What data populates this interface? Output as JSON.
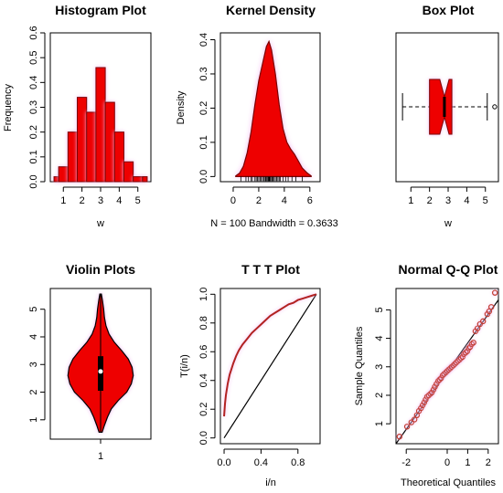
{
  "colors": {
    "fill": "#ee0000",
    "outline": "#7a0000",
    "glow": "#f2b8f2",
    "line": "#000000"
  },
  "chart_data": [
    {
      "id": "histogram",
      "type": "bar",
      "title": "Histogram Plot",
      "xlabel": "w",
      "ylabel": "Frequency",
      "xlim": [
        0.3,
        5.7
      ],
      "ylim": [
        0,
        0.6
      ],
      "xticks": [
        "1",
        "2",
        "3",
        "4",
        "5"
      ],
      "yticks": [
        "0.0",
        "0.1",
        "0.2",
        "0.3",
        "0.4",
        "0.5",
        "0.6"
      ],
      "bin_edges": [
        0.5,
        0.75,
        1.25,
        1.75,
        2.25,
        2.75,
        3.25,
        3.75,
        4.25,
        4.75,
        5.25,
        5.5
      ],
      "values": [
        0.02,
        0.06,
        0.2,
        0.34,
        0.28,
        0.46,
        0.32,
        0.2,
        0.08,
        0.02,
        0.02
      ]
    },
    {
      "id": "density",
      "type": "area",
      "title": "Kernel Density",
      "ylabel": "Density",
      "note": "N = 100   Bandwidth = 0.3633",
      "xlim": [
        -1.0,
        6.8
      ],
      "ylim": [
        -0.015,
        0.42
      ],
      "xticks": [
        "0",
        "2",
        "4",
        "6"
      ],
      "yticks": [
        "0.0",
        "0.1",
        "0.2",
        "0.3",
        "0.4"
      ],
      "x": [
        0.2,
        0.5,
        0.8,
        1.1,
        1.4,
        1.7,
        2.0,
        2.3,
        2.6,
        2.8,
        3.0,
        3.3,
        3.6,
        3.9,
        4.2,
        4.5,
        4.8,
        5.1,
        5.4,
        5.8,
        6.1
      ],
      "y": [
        0.002,
        0.01,
        0.03,
        0.07,
        0.13,
        0.21,
        0.28,
        0.33,
        0.38,
        0.395,
        0.37,
        0.3,
        0.21,
        0.14,
        0.1,
        0.08,
        0.065,
        0.045,
        0.025,
        0.01,
        0.002
      ],
      "rug": [
        0.6,
        1.0,
        1.2,
        1.4,
        1.5,
        1.7,
        1.8,
        1.9,
        2.0,
        2.1,
        2.2,
        2.3,
        2.4,
        2.5,
        2.55,
        2.6,
        2.7,
        2.75,
        2.8,
        2.85,
        2.9,
        3.0,
        3.05,
        3.1,
        3.2,
        3.3,
        3.4,
        3.5,
        3.6,
        3.7,
        3.9,
        4.1,
        4.3,
        4.6,
        4.9,
        5.4
      ]
    },
    {
      "id": "boxplot",
      "type": "box",
      "title": "Box Plot",
      "xlabel": "w",
      "xlim": [
        0.2,
        5.7
      ],
      "xticks": [
        "1",
        "2",
        "3",
        "4",
        "5"
      ],
      "whisker_low": 0.55,
      "q1": 2.0,
      "median": 2.8,
      "q3": 3.2,
      "whisker_high": 5.1,
      "notch": [
        2.55,
        3.05
      ],
      "outliers": [
        5.5
      ]
    },
    {
      "id": "violin",
      "type": "violin",
      "title": "Violin Plots",
      "xtick": "1",
      "ylim": [
        0.3,
        5.75
      ],
      "yticks": [
        "1",
        "2",
        "3",
        "4",
        "5"
      ],
      "y": [
        0.55,
        0.8,
        1.1,
        1.4,
        1.7,
        2.0,
        2.3,
        2.6,
        2.9,
        3.2,
        3.5,
        3.8,
        4.1,
        4.4,
        4.7,
        5.0,
        5.3,
        5.55
      ],
      "half_width": [
        0.04,
        0.1,
        0.18,
        0.28,
        0.46,
        0.68,
        0.8,
        0.85,
        0.82,
        0.72,
        0.55,
        0.36,
        0.22,
        0.14,
        0.1,
        0.08,
        0.05,
        0.02
      ],
      "q1": 2.05,
      "median": 2.75,
      "q3": 3.3,
      "whisker_low": 0.55,
      "whisker_high": 5.55
    },
    {
      "id": "ttt",
      "type": "line",
      "title": "T T T Plot",
      "xlabel": "i/n",
      "ylabel": "T(i/n)",
      "xlim": [
        -0.04,
        1.04
      ],
      "ylim": [
        -0.04,
        1.04
      ],
      "xticks": [
        "0.0",
        "0.4",
        "0.8"
      ],
      "yticks": [
        "0.0",
        "0.2",
        "0.4",
        "0.6",
        "0.8",
        "1.0"
      ],
      "x": [
        0.0,
        0.01,
        0.02,
        0.04,
        0.06,
        0.08,
        0.1,
        0.13,
        0.16,
        0.2,
        0.25,
        0.3,
        0.35,
        0.4,
        0.45,
        0.5,
        0.55,
        0.6,
        0.65,
        0.7,
        0.75,
        0.8,
        0.85,
        0.9,
        0.95,
        1.0
      ],
      "y": [
        0.15,
        0.24,
        0.3,
        0.38,
        0.44,
        0.48,
        0.52,
        0.57,
        0.61,
        0.65,
        0.69,
        0.73,
        0.76,
        0.79,
        0.82,
        0.85,
        0.87,
        0.89,
        0.91,
        0.93,
        0.94,
        0.96,
        0.97,
        0.98,
        0.99,
        1.0
      ]
    },
    {
      "id": "qq",
      "type": "scatter",
      "title": "Normal Q-Q Plot",
      "xlabel": "Theoretical Quantiles",
      "ylabel": "Sample Quantiles",
      "xlim": [
        -2.5,
        2.5
      ],
      "ylim": [
        0.3,
        5.75
      ],
      "xticks": [
        "-2",
        "0",
        "1",
        "2"
      ],
      "yticks": [
        "1",
        "2",
        "3",
        "4",
        "5"
      ],
      "line": {
        "x": [
          -2.5,
          2.5
        ],
        "y": [
          0.3,
          5.35
        ]
      },
      "x": [
        -2.33,
        -1.96,
        -1.75,
        -1.6,
        -1.48,
        -1.38,
        -1.28,
        -1.2,
        -1.12,
        -1.05,
        -0.98,
        -0.9,
        -0.82,
        -0.75,
        -0.67,
        -0.6,
        -0.52,
        -0.44,
        -0.37,
        -0.3,
        -0.22,
        -0.15,
        -0.07,
        0.0,
        0.07,
        0.15,
        0.22,
        0.3,
        0.37,
        0.44,
        0.52,
        0.6,
        0.67,
        0.75,
        0.82,
        0.9,
        0.98,
        1.05,
        1.12,
        1.2,
        1.28,
        1.38,
        1.48,
        1.6,
        1.75,
        1.96,
        2.05,
        2.15,
        2.33
      ],
      "y": [
        0.55,
        0.9,
        1.05,
        1.15,
        1.3,
        1.45,
        1.55,
        1.65,
        1.75,
        1.85,
        1.95,
        2.0,
        2.05,
        2.1,
        2.2,
        2.3,
        2.4,
        2.5,
        2.55,
        2.6,
        2.7,
        2.75,
        2.8,
        2.85,
        2.9,
        2.95,
        3.0,
        3.05,
        3.1,
        3.15,
        3.2,
        3.25,
        3.3,
        3.35,
        3.45,
        3.5,
        3.55,
        3.65,
        3.7,
        3.8,
        3.85,
        4.25,
        4.35,
        4.5,
        4.6,
        4.85,
        4.95,
        5.1,
        5.6
      ]
    }
  ]
}
